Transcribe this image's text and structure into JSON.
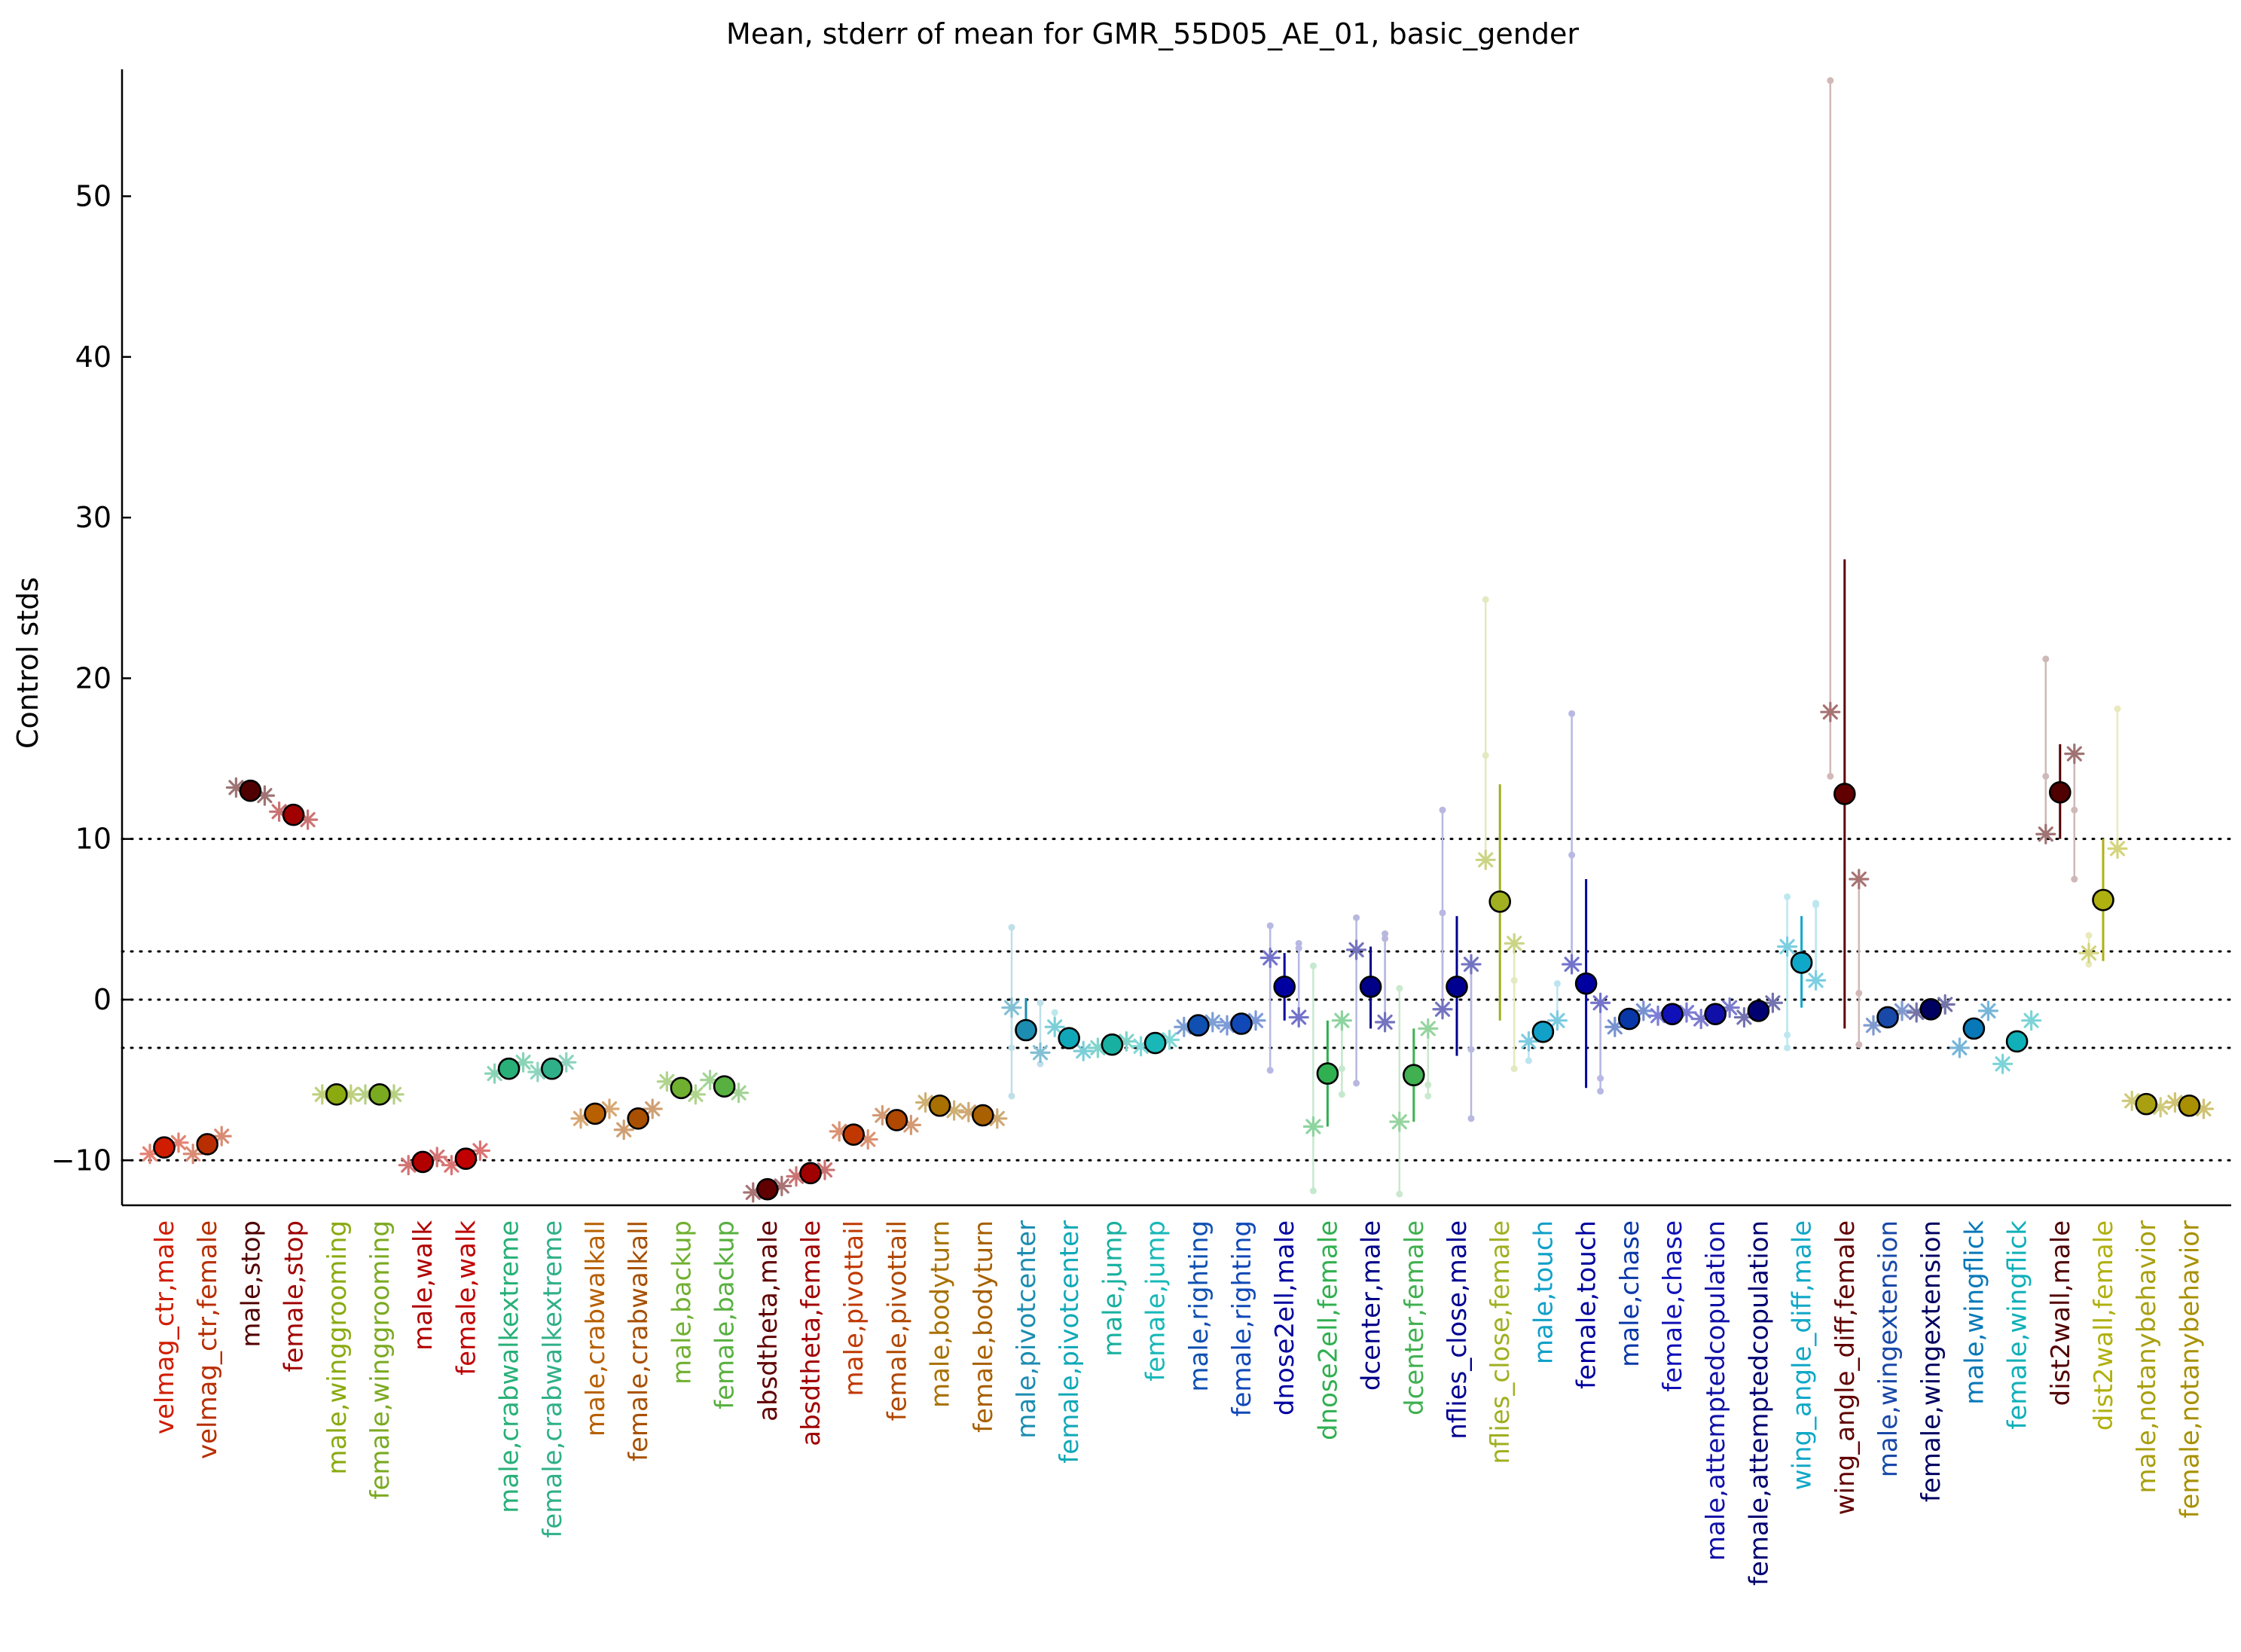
{
  "chart_data": {
    "type": "scatter",
    "title": "Mean, stderr of mean for GMR_55D05_AE_01, basic_gender",
    "xlabel": "",
    "ylabel": "Control stds",
    "ylim": [
      -12.8,
      57.9
    ],
    "yticks": [
      -10,
      0,
      10,
      20,
      30,
      40,
      50
    ],
    "reference_lines": [
      -10,
      -3,
      0,
      3,
      10
    ],
    "grid": false,
    "legend": "none",
    "categories": [
      {
        "label": "velmag_ctr,male",
        "color": "#d01c00",
        "mean": -9.2,
        "err_lo": -9.2,
        "err_hi": -9.2,
        "stars": [
          -9.6,
          -8.9
        ],
        "dots": []
      },
      {
        "label": "velmag_ctr,female",
        "color": "#b82e00",
        "mean": -9.0,
        "err_lo": -9.0,
        "err_hi": -9.0,
        "stars": [
          -9.6,
          -8.5
        ],
        "dots": []
      },
      {
        "label": "male,stop",
        "color": "#500000",
        "mean": 13.0,
        "err_lo": 13.0,
        "err_hi": 13.0,
        "stars": [
          13.2,
          12.7
        ],
        "dots": []
      },
      {
        "label": "female,stop",
        "color": "#a00000",
        "mean": 11.5,
        "err_lo": 11.5,
        "err_hi": 11.5,
        "stars": [
          11.7,
          11.2
        ],
        "dots": []
      },
      {
        "label": "male,winggrooming",
        "color": "#8aaa10",
        "mean": -5.9,
        "err_lo": -5.9,
        "err_hi": -5.9,
        "stars": [
          -5.9,
          -5.9
        ],
        "dots": []
      },
      {
        "label": "female,winggrooming",
        "color": "#7aaa20",
        "mean": -5.9,
        "err_lo": -5.9,
        "err_hi": -5.9,
        "stars": [
          -5.9,
          -5.9
        ],
        "dots": []
      },
      {
        "label": "male,walk",
        "color": "#b00000",
        "mean": -10.1,
        "err_lo": -10.1,
        "err_hi": -10.1,
        "stars": [
          -10.3,
          -9.8
        ],
        "dots": []
      },
      {
        "label": "female,walk",
        "color": "#c00000",
        "mean": -9.9,
        "err_lo": -9.9,
        "err_hi": -9.9,
        "stars": [
          -10.3,
          -9.4
        ],
        "dots": []
      },
      {
        "label": "male,crabwalkextreme",
        "color": "#28b078",
        "mean": -4.3,
        "err_lo": -4.3,
        "err_hi": -4.3,
        "stars": [
          -4.6,
          -3.9
        ],
        "dots": []
      },
      {
        "label": "female,crabwalkextreme",
        "color": "#30b088",
        "mean": -4.3,
        "err_lo": -4.3,
        "err_hi": -4.3,
        "stars": [
          -4.5,
          -3.9
        ],
        "dots": []
      },
      {
        "label": "male,crabwalkall",
        "color": "#b86000",
        "mean": -7.1,
        "err_lo": -7.1,
        "err_hi": -7.1,
        "stars": [
          -7.4,
          -6.8
        ],
        "dots": []
      },
      {
        "label": "female,crabwalkall",
        "color": "#a85000",
        "mean": -7.4,
        "err_lo": -7.4,
        "err_hi": -7.4,
        "stars": [
          -8.1,
          -6.8
        ],
        "dots": []
      },
      {
        "label": "male,backup",
        "color": "#70b030",
        "mean": -5.5,
        "err_lo": -5.5,
        "err_hi": -5.5,
        "stars": [
          -5.1,
          -5.9
        ],
        "dots": []
      },
      {
        "label": "female,backup",
        "color": "#58b040",
        "mean": -5.4,
        "err_lo": -5.4,
        "err_hi": -5.4,
        "stars": [
          -5.0,
          -5.8
        ],
        "dots": []
      },
      {
        "label": "absdtheta,male",
        "color": "#600000",
        "mean": -11.8,
        "err_lo": -11.8,
        "err_hi": -11.8,
        "stars": [
          -12.0,
          -11.6
        ],
        "dots": []
      },
      {
        "label": "absdtheta,female",
        "color": "#a00000",
        "mean": -10.8,
        "err_lo": -10.8,
        "err_hi": -10.8,
        "stars": [
          -11.0,
          -10.6
        ],
        "dots": []
      },
      {
        "label": "male,pivottail",
        "color": "#c03800",
        "mean": -8.4,
        "err_lo": -8.4,
        "err_hi": -8.4,
        "stars": [
          -8.2,
          -8.7
        ],
        "dots": []
      },
      {
        "label": "female,pivottail",
        "color": "#b04800",
        "mean": -7.5,
        "err_lo": -7.5,
        "err_hi": -7.5,
        "stars": [
          -7.2,
          -7.8
        ],
        "dots": []
      },
      {
        "label": "male,bodyturn",
        "color": "#a87000",
        "mean": -6.6,
        "err_lo": -6.6,
        "err_hi": -6.6,
        "stars": [
          -6.4,
          -6.9
        ],
        "dots": []
      },
      {
        "label": "female,bodyturn",
        "color": "#a86000",
        "mean": -7.2,
        "err_lo": -7.2,
        "err_hi": -7.2,
        "stars": [
          -7.0,
          -7.4
        ],
        "dots": []
      },
      {
        "label": "male,pivotcenter",
        "color": "#1c8cb0",
        "mean": -1.9,
        "err_lo": -2.4,
        "err_hi": 0.1,
        "stars": [
          -0.5,
          -3.3
        ],
        "dots": [
          4.5,
          -0.2,
          -3.0,
          -4.0,
          -6.0
        ]
      },
      {
        "label": "female,pivotcenter",
        "color": "#10a8b8",
        "mean": -2.4,
        "err_lo": -2.4,
        "err_hi": -2.4,
        "stars": [
          -1.7,
          -3.2
        ],
        "dots": [
          -0.8
        ]
      },
      {
        "label": "male,jump",
        "color": "#18b0a0",
        "mean": -2.8,
        "err_lo": -2.8,
        "err_hi": -2.8,
        "stars": [
          -3.0,
          -2.6
        ],
        "dots": []
      },
      {
        "label": "female,jump",
        "color": "#18b8b8",
        "mean": -2.7,
        "err_lo": -2.7,
        "err_hi": -2.7,
        "stars": [
          -2.9,
          -2.5
        ],
        "dots": []
      },
      {
        "label": "male,righting",
        "color": "#1050b0",
        "mean": -1.6,
        "err_lo": -1.6,
        "err_hi": -1.6,
        "stars": [
          -1.7,
          -1.4
        ],
        "dots": []
      },
      {
        "label": "female,righting",
        "color": "#1048b8",
        "mean": -1.5,
        "err_lo": -1.5,
        "err_hi": -1.5,
        "stars": [
          -1.6,
          -1.3
        ],
        "dots": []
      },
      {
        "label": "dnose2ell,male",
        "color": "#0000a0",
        "mean": 0.8,
        "err_lo": -1.3,
        "err_hi": 2.9,
        "stars": [
          2.6,
          -1.1
        ],
        "dots": [
          4.6,
          3.5,
          -4.4,
          3.2
        ]
      },
      {
        "label": "dnose2ell,female",
        "color": "#30b050",
        "mean": -4.6,
        "err_lo": -7.9,
        "err_hi": -1.3,
        "stars": [
          -7.9,
          -1.3
        ],
        "dots": [
          -11.9,
          -4.3,
          2.1,
          -5.9
        ]
      },
      {
        "label": "dcenter,male",
        "color": "#000088",
        "mean": 0.8,
        "err_lo": -1.8,
        "err_hi": 3.3,
        "stars": [
          3.1,
          -1.4
        ],
        "dots": [
          5.1,
          4.1,
          -5.2,
          3.8
        ]
      },
      {
        "label": "dcenter,female",
        "color": "#40b050",
        "mean": -4.7,
        "err_lo": -7.6,
        "err_hi": -1.8,
        "stars": [
          -7.6,
          -1.8
        ],
        "dots": [
          -12.1,
          -5.3,
          0.7,
          -6.0
        ]
      },
      {
        "label": "nflies_close,male",
        "color": "#000090",
        "mean": 0.8,
        "err_lo": -3.5,
        "err_hi": 5.2,
        "stars": [
          -0.6,
          2.2
        ],
        "dots": [
          5.4,
          -7.4,
          11.8,
          -3.1
        ]
      },
      {
        "label": "nflies_close,female",
        "color": "#a0b020",
        "mean": 6.1,
        "err_lo": -1.3,
        "err_hi": 13.4,
        "stars": [
          8.7,
          3.5
        ],
        "dots": [
          24.9,
          1.2,
          15.2,
          -4.3
        ]
      },
      {
        "label": "male,touch",
        "color": "#10a0c8",
        "mean": -2.0,
        "err_lo": -2.0,
        "err_hi": -2.0,
        "stars": [
          -2.6,
          -1.3
        ],
        "dots": [
          -3.8,
          1.0
        ]
      },
      {
        "label": "female,touch",
        "color": "#0000a0",
        "mean": 1.0,
        "err_lo": -5.5,
        "err_hi": 7.5,
        "stars": [
          2.2,
          -0.2
        ],
        "dots": [
          17.8,
          -5.7,
          9.0,
          -4.9
        ]
      },
      {
        "label": "male,chase",
        "color": "#0838a8",
        "mean": -1.2,
        "err_lo": -1.2,
        "err_hi": -1.2,
        "stars": [
          -1.7,
          -0.7
        ],
        "dots": []
      },
      {
        "label": "female,chase",
        "color": "#1010b8",
        "mean": -0.9,
        "err_lo": -0.9,
        "err_hi": -0.9,
        "stars": [
          -1.0,
          -0.8
        ],
        "dots": []
      },
      {
        "label": "male,attemptedcopulation",
        "color": "#1010a8",
        "mean": -0.9,
        "err_lo": -0.9,
        "err_hi": -0.9,
        "stars": [
          -1.2,
          -0.5
        ],
        "dots": []
      },
      {
        "label": "female,attemptedcopulation",
        "color": "#000070",
        "mean": -0.7,
        "err_lo": -0.7,
        "err_hi": -0.7,
        "stars": [
          -1.1,
          -0.2
        ],
        "dots": []
      },
      {
        "label": "wing_angle_diff,male",
        "color": "#10a8c8",
        "mean": 2.3,
        "err_lo": -0.5,
        "err_hi": 5.2,
        "stars": [
          3.3,
          1.2
        ],
        "dots": [
          6.4,
          6.0,
          -2.2,
          5.9,
          -3.0
        ]
      },
      {
        "label": "wing_angle_diff,female",
        "color": "#600000",
        "mean": 12.8,
        "err_lo": -1.8,
        "err_hi": 27.4,
        "stars": [
          17.9,
          7.5
        ],
        "dots": [
          57.2,
          -2.8,
          13.9,
          0.4
        ]
      },
      {
        "label": "male,wingextension",
        "color": "#1848a8",
        "mean": -1.1,
        "err_lo": -1.1,
        "err_hi": -1.1,
        "stars": [
          -1.6,
          -0.7
        ],
        "dots": []
      },
      {
        "label": "female,wingextension",
        "color": "#000060",
        "mean": -0.6,
        "err_lo": -0.6,
        "err_hi": -0.6,
        "stars": [
          -0.8,
          -0.3
        ],
        "dots": []
      },
      {
        "label": "male,wingflick",
        "color": "#0878b8",
        "mean": -1.8,
        "err_lo": -1.8,
        "err_hi": -1.8,
        "stars": [
          -3.0,
          -0.7
        ],
        "dots": []
      },
      {
        "label": "female,wingflick",
        "color": "#10b0b8",
        "mean": -2.6,
        "err_lo": -2.6,
        "err_hi": -2.6,
        "stars": [
          -4.0,
          -1.3
        ],
        "dots": []
      },
      {
        "label": "dist2wall,male",
        "color": "#500000",
        "mean": 12.9,
        "err_lo": 10.0,
        "err_hi": 15.9,
        "stars": [
          10.3,
          15.3
        ],
        "dots": [
          13.9,
          7.5,
          21.2,
          11.8
        ]
      },
      {
        "label": "dist2wall,female",
        "color": "#b0b010",
        "mean": 6.2,
        "err_lo": 2.4,
        "err_hi": 10.0,
        "stars": [
          2.9,
          9.4
        ],
        "dots": [
          2.2,
          18.1,
          4.0
        ]
      },
      {
        "label": "male,notanybehavior",
        "color": "#a8a010",
        "mean": -6.5,
        "err_lo": -6.5,
        "err_hi": -6.5,
        "stars": [
          -6.3,
          -6.7
        ],
        "dots": []
      },
      {
        "label": "female,notanybehavior",
        "color": "#a89000",
        "mean": -6.6,
        "err_lo": -6.6,
        "err_hi": -6.6,
        "stars": [
          -6.4,
          -6.8
        ],
        "dots": []
      }
    ]
  }
}
